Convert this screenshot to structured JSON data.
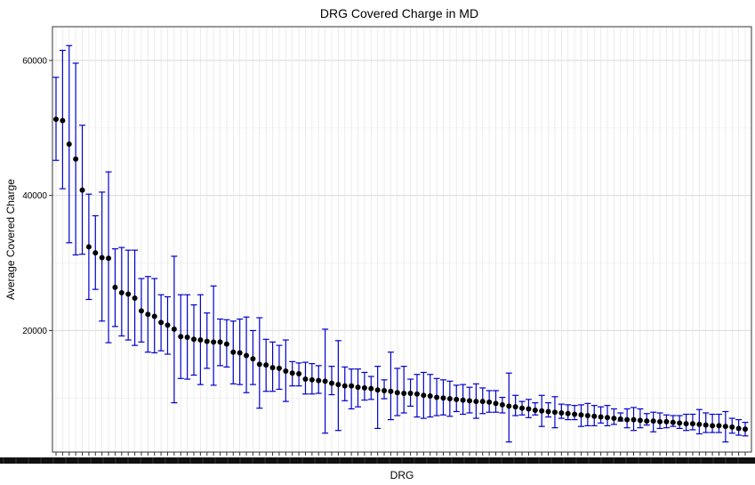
{
  "chart_data": {
    "type": "scatter",
    "title": "DRG Covered Charge in MD",
    "xlabel": "DRG",
    "ylabel": "Average Covered Charge",
    "ylim": [
      2000,
      65000
    ],
    "y_ticks": [
      20000,
      40000,
      60000
    ],
    "y_tick_labels": [
      "20000",
      "40000",
      "60000"
    ],
    "grid": true,
    "error_bar_color": "#0000cc",
    "point_color": "#000000",
    "x_tick_labels_overplotted": true,
    "series": [
      {
        "means": [
          51300,
          51100,
          47600,
          45400,
          40800,
          32400,
          31500,
          30800,
          30700,
          26400,
          25600,
          25400,
          24800,
          22900,
          22400,
          22100,
          21200,
          20800,
          20200,
          19100,
          19000,
          18700,
          18600,
          18400,
          18300,
          18300,
          18000,
          16800,
          16700,
          16300,
          15800,
          15000,
          14900,
          14500,
          14400,
          14000,
          13700,
          13600,
          12800,
          12700,
          12600,
          12500,
          12200,
          12000,
          11800,
          11800,
          11600,
          11500,
          11400,
          11200,
          11100,
          11000,
          10800,
          10700,
          10700,
          10600,
          10400,
          10300,
          10100,
          10000,
          9900,
          9800,
          9700,
          9600,
          9500,
          9500,
          9400,
          9200,
          9000,
          8800,
          8700,
          8500,
          8400,
          8200,
          8100,
          8000,
          7900,
          7800,
          7700,
          7600,
          7500,
          7400,
          7300,
          7200,
          7100,
          7000,
          6900,
          6800,
          6800,
          6700,
          6600,
          6600,
          6500,
          6500,
          6400,
          6300,
          6200,
          6200,
          6100,
          6000,
          5900,
          5900,
          5800,
          5700,
          5500,
          5400
        ],
        "lower": [
          45200,
          41000,
          33000,
          31200,
          31300,
          24600,
          26100,
          21400,
          18200,
          20600,
          19200,
          18600,
          17800,
          18300,
          16800,
          16700,
          17000,
          16500,
          9300,
          12900,
          12800,
          13400,
          12000,
          14400,
          11900,
          14800,
          14600,
          12100,
          12000,
          10800,
          12000,
          8500,
          11000,
          11000,
          11300,
          9500,
          11800,
          11800,
          10600,
          10600,
          10700,
          4800,
          10500,
          5200,
          9600,
          8400,
          8700,
          9700,
          9800,
          5500,
          9900,
          6800,
          7400,
          7800,
          8800,
          7200,
          7000,
          7200,
          7400,
          7500,
          7300,
          8000,
          7600,
          7800,
          7000,
          7700,
          7900,
          7900,
          7800,
          3500,
          7400,
          7500,
          7100,
          7500,
          5800,
          7200,
          5600,
          7000,
          6800,
          6800,
          5800,
          5900,
          5900,
          6300,
          5900,
          6100,
          6600,
          5600,
          5200,
          5600,
          6000,
          5000,
          5500,
          5600,
          5800,
          5500,
          5200,
          5300,
          4700,
          4900,
          4900,
          4900,
          3500,
          4800,
          4500,
          4400
        ],
        "upper": [
          57500,
          61500,
          62200,
          59600,
          50400,
          40200,
          37000,
          40500,
          43500,
          32100,
          32300,
          31900,
          31900,
          27700,
          28000,
          27700,
          25300,
          25000,
          31000,
          25300,
          25300,
          23800,
          25300,
          22600,
          26600,
          21700,
          21600,
          21400,
          21700,
          22000,
          20000,
          21900,
          18700,
          18300,
          17800,
          18600,
          15400,
          15200,
          15300,
          15100,
          14800,
          20200,
          14700,
          18500,
          14600,
          14300,
          14300,
          13800,
          13200,
          14700,
          12700,
          16800,
          14400,
          14700,
          12800,
          13500,
          13800,
          13500,
          12900,
          12700,
          12500,
          11900,
          12000,
          11600,
          12100,
          11500,
          11100,
          11100,
          10100,
          13700,
          10400,
          9500,
          9800,
          9300,
          10400,
          9300,
          10200,
          9100,
          9000,
          8900,
          9000,
          9200,
          8900,
          8700,
          8900,
          8400,
          7800,
          8400,
          8600,
          8400,
          7700,
          7900,
          7800,
          7500,
          7400,
          7400,
          7600,
          7600,
          8300,
          7800,
          7600,
          7600,
          8000,
          7000,
          6800,
          6400
        ]
      }
    ]
  }
}
